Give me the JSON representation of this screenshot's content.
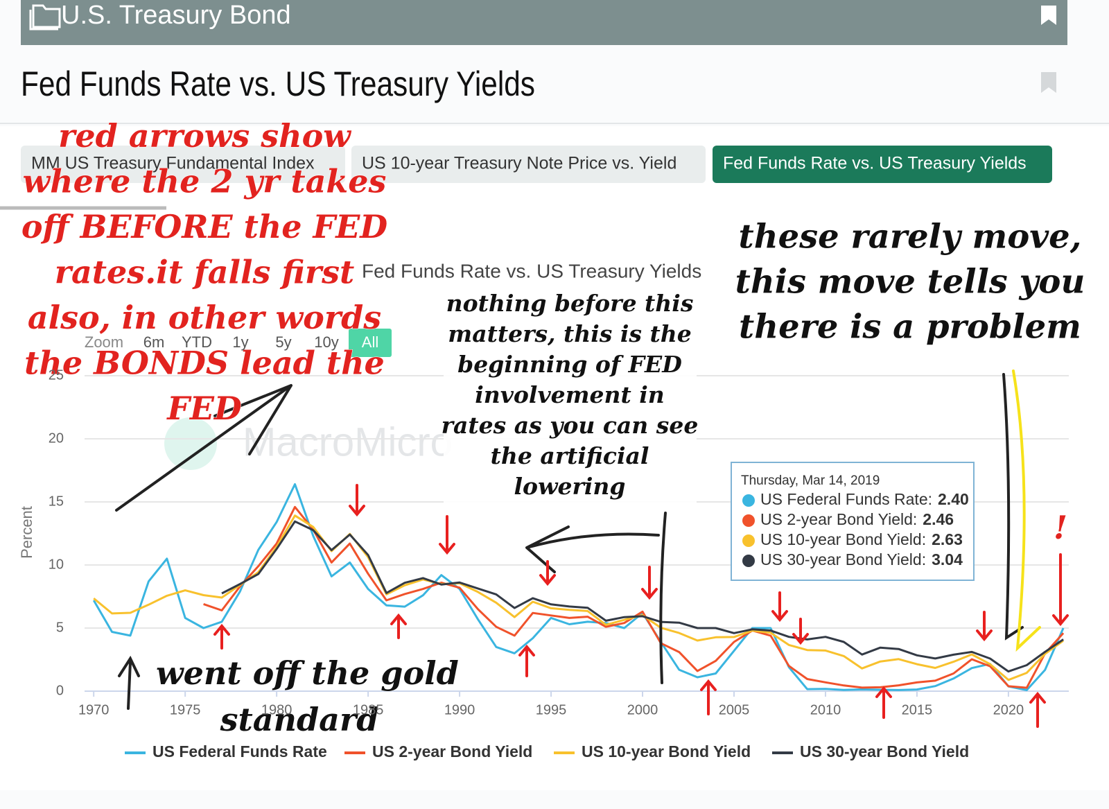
{
  "header": {
    "section": "U.S. Treasury Bond",
    "title": "Fed Funds Rate vs. US Treasury Yields"
  },
  "tabs": [
    "MM US Treasury Fundamental Index",
    "US 10-year Treasury Note Price vs. Yield",
    "Fed Funds Rate vs. US Treasury Yields"
  ],
  "zoom": {
    "label": "Zoom",
    "buttons": [
      "6m",
      "YTD",
      "1y",
      "5y",
      "10y",
      "All"
    ]
  },
  "watermark": "MacroMicro",
  "tooltip": {
    "date": "Thursday, Mar 14, 2019",
    "items": [
      {
        "label": "US Federal Funds Rate:",
        "value": "2.40",
        "color": "#3ab5e0"
      },
      {
        "label": "US 2-year Bond Yield:",
        "value": "2.46",
        "color": "#f0522b"
      },
      {
        "label": "US 10-year Bond Yield:",
        "value": "2.63",
        "color": "#f8c12d"
      },
      {
        "label": "US 30-year Bond Yield:",
        "value": "3.04",
        "color": "#333a45"
      }
    ]
  },
  "annotations": {
    "left": [
      "red arrows show",
      "where the 2 yr takes",
      "off BEFORE the FED",
      "rates.it falls first",
      "also, in other words",
      "the BONDS lead the",
      "FED"
    ],
    "middle": [
      "nothing before this",
      "matters, this is the",
      "beginning of FED",
      "involvement in",
      "rates as you can see",
      "the artificial",
      "lowering"
    ],
    "right": [
      "these rarely move,",
      "this move tells you",
      "there is a problem"
    ],
    "bottom": [
      "went off the gold",
      "standard"
    ],
    "exclaim": "!"
  },
  "chart_data": {
    "type": "line",
    "title": "Fed Funds Rate vs. US Treasury Yields",
    "y_label": "Percent",
    "x": [
      1970,
      1971,
      1972,
      1973,
      1974,
      1975,
      1976,
      1977,
      1978,
      1979,
      1980,
      1981,
      1982,
      1983,
      1984,
      1985,
      1986,
      1987,
      1988,
      1989,
      1990,
      1991,
      1992,
      1993,
      1994,
      1995,
      1996,
      1997,
      1998,
      1999,
      2000,
      2001,
      2002,
      2003,
      2004,
      2005,
      2006,
      2007,
      2008,
      2009,
      2010,
      2011,
      2012,
      2013,
      2014,
      2015,
      2016,
      2017,
      2018,
      2019,
      2020,
      2021,
      2022,
      2023
    ],
    "xlim": [
      1969.5,
      2023.3
    ],
    "xticks": [
      1970,
      1975,
      1980,
      1985,
      1990,
      1995,
      2000,
      2005,
      2010,
      2015,
      2020
    ],
    "ylim": [
      0,
      25
    ],
    "yticks": [
      0,
      5,
      10,
      15,
      20,
      25
    ],
    "grid": true,
    "legend": "bottom",
    "series": [
      {
        "name": "US Federal Funds Rate",
        "color": "#3ab5e0",
        "values": [
          7.2,
          4.7,
          4.4,
          8.7,
          10.5,
          5.8,
          5.0,
          5.5,
          7.9,
          11.2,
          13.4,
          16.4,
          12.3,
          9.1,
          10.2,
          8.1,
          6.8,
          6.7,
          7.6,
          9.2,
          8.1,
          5.7,
          3.5,
          3.0,
          4.2,
          5.8,
          5.3,
          5.5,
          5.4,
          5.0,
          6.2,
          3.9,
          1.7,
          1.1,
          1.4,
          3.2,
          5.0,
          5.0,
          1.9,
          0.16,
          0.18,
          0.1,
          0.14,
          0.11,
          0.09,
          0.13,
          0.4,
          1.0,
          1.83,
          2.16,
          0.38,
          0.08,
          1.68,
          5.0
        ]
      },
      {
        "name": "US 2-year Bond Yield",
        "color": "#f0522b",
        "values": [
          null,
          null,
          null,
          null,
          null,
          null,
          6.9,
          6.4,
          8.3,
          9.9,
          11.7,
          14.6,
          12.8,
          10.2,
          11.7,
          9.3,
          7.2,
          7.7,
          8.1,
          8.6,
          8.2,
          6.5,
          5.1,
          4.4,
          6.2,
          6.0,
          5.8,
          5.9,
          5.1,
          5.4,
          6.3,
          3.8,
          3.1,
          1.6,
          2.4,
          3.9,
          4.8,
          4.4,
          2.0,
          0.96,
          0.7,
          0.45,
          0.28,
          0.31,
          0.46,
          0.69,
          0.83,
          1.4,
          2.53,
          1.97,
          0.39,
          0.27,
          2.99,
          4.6
        ]
      },
      {
        "name": "US 10-year Bond Yield",
        "color": "#f8c12d",
        "values": [
          7.35,
          6.16,
          6.21,
          6.85,
          7.56,
          7.99,
          7.61,
          7.42,
          8.41,
          9.43,
          11.43,
          13.92,
          13.01,
          11.1,
          12.46,
          10.62,
          7.67,
          8.39,
          8.85,
          8.49,
          8.55,
          7.86,
          7.01,
          5.87,
          7.09,
          6.57,
          6.44,
          6.35,
          5.26,
          5.65,
          6.03,
          5.02,
          4.61,
          4.01,
          4.27,
          4.29,
          4.8,
          4.63,
          3.66,
          3.26,
          3.22,
          2.78,
          1.8,
          2.35,
          2.54,
          2.14,
          1.84,
          2.33,
          2.91,
          2.14,
          0.89,
          1.45,
          2.95,
          4.0
        ]
      },
      {
        "name": "US 30-year Bond Yield",
        "color": "#333a45",
        "values": [
          null,
          null,
          null,
          null,
          null,
          null,
          null,
          7.75,
          8.49,
          9.28,
          11.27,
          13.45,
          12.76,
          11.18,
          12.41,
          10.79,
          7.78,
          8.59,
          8.96,
          8.45,
          8.61,
          8.14,
          7.67,
          6.59,
          7.37,
          6.88,
          6.71,
          6.61,
          5.58,
          5.87,
          5.94,
          5.49,
          5.43,
          5.0,
          5.0,
          4.6,
          4.9,
          4.8,
          4.3,
          4.1,
          4.3,
          3.9,
          2.9,
          3.45,
          3.34,
          2.84,
          2.59,
          2.89,
          3.11,
          2.58,
          1.56,
          2.06,
          3.11,
          4.1
        ]
      }
    ]
  }
}
